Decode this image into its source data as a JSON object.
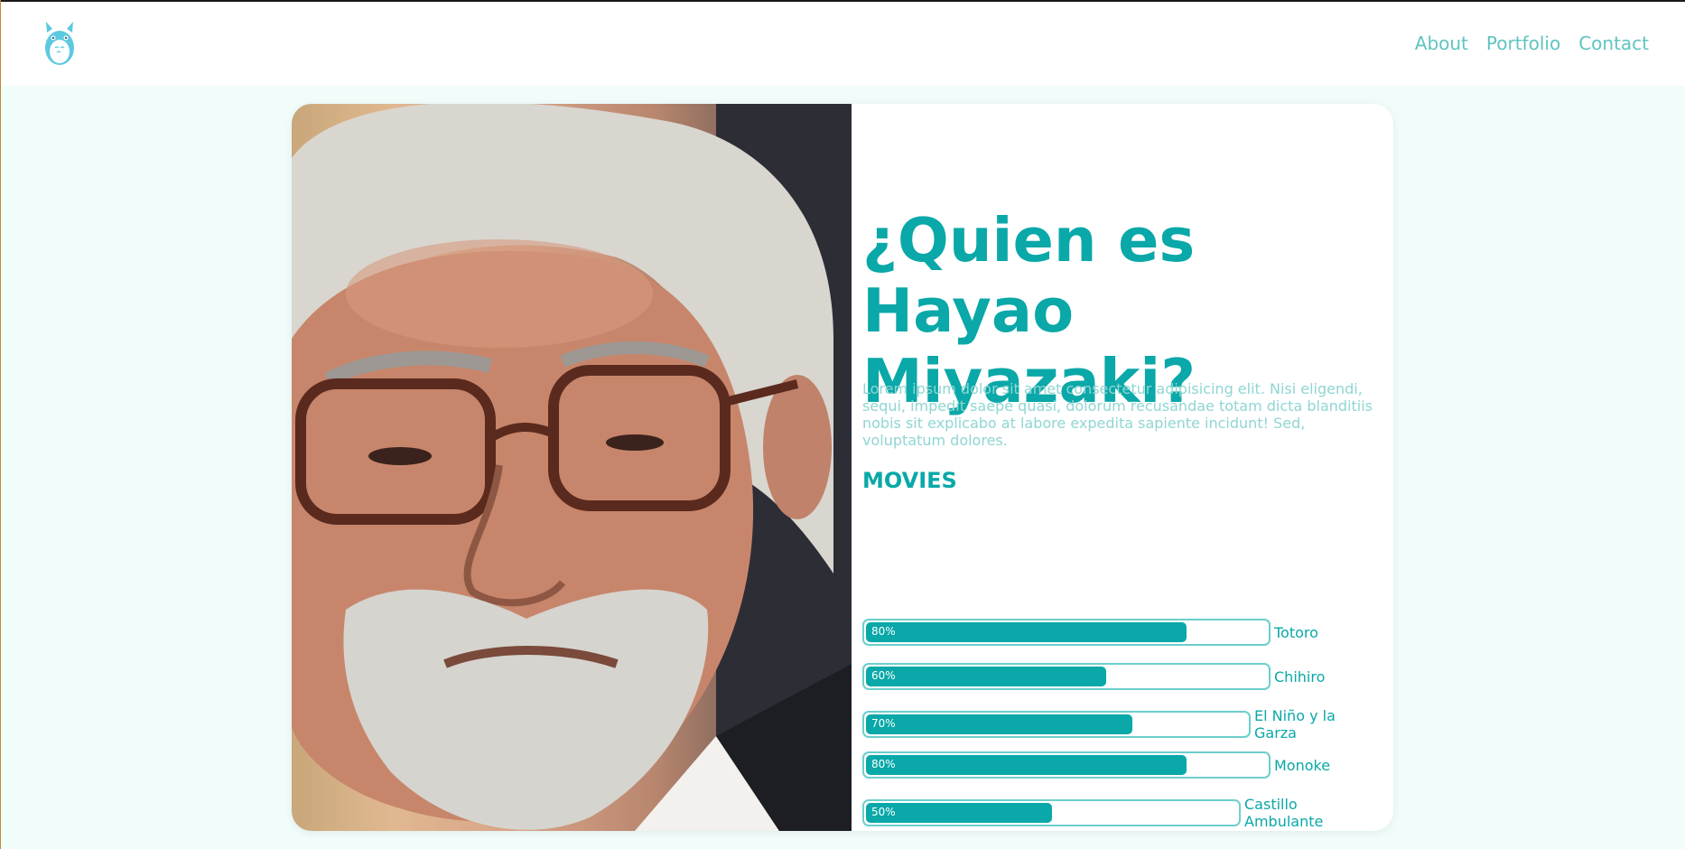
{
  "nav": {
    "items": [
      "About",
      "Portfolio",
      "Contact"
    ]
  },
  "logo": {
    "icon": "totoro-icon"
  },
  "hero": {
    "title_line1": "¿Quien es",
    "title_line2": "Hayao Miyazaki?",
    "description": "Lorem ipsum dolor sit amet consectetur adipisicing elit. Nisi eligendi, sequi, impedit saepe quasi, dolorum recusandae totam dicta blanditiis nobis sit explicabo at labore expedita sapiente incidunt! Sed, voluptatum dolores.",
    "movies_title": "MOVIES"
  },
  "movies": [
    {
      "label": "Totoro",
      "percent": 80,
      "percent_text": "80%"
    },
    {
      "label": "Chihiro",
      "percent": 60,
      "percent_text": "60%"
    },
    {
      "label": "El Niño y la Garza",
      "percent": 70,
      "percent_text": "70%"
    },
    {
      "label": "Monoke",
      "percent": 80,
      "percent_text": "80%"
    },
    {
      "label": "Castillo Ambulante",
      "percent": 50,
      "percent_text": "50%"
    }
  ],
  "colors": {
    "accent": "#0aa8a8",
    "nav_link": "#5fc4c0",
    "description": "#8fd6d3",
    "background": "#f0fdfb"
  }
}
